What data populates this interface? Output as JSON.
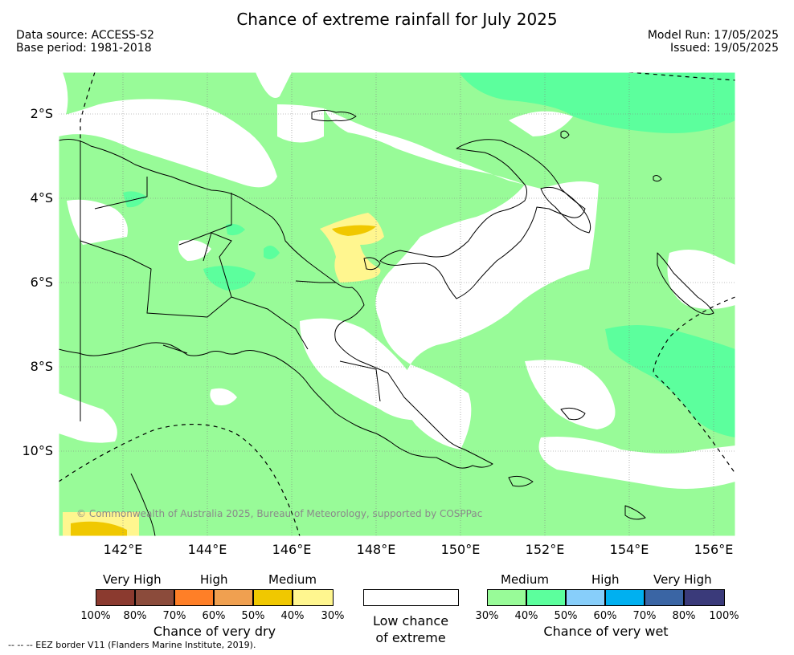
{
  "title": "Chance of extreme rainfall for July 2025",
  "data_source": "Data source: ACCESS-S2",
  "base_period": "Base period: 1981-2018",
  "model_run": "Model Run: 17/05/2025",
  "issued": "Issued: 19/05/2025",
  "lat_labels": [
    "2°S",
    "4°S",
    "6°S",
    "8°S",
    "10°S"
  ],
  "lon_labels": [
    "142°E",
    "144°E",
    "146°E",
    "148°E",
    "150°E",
    "152°E",
    "154°E",
    "156°E"
  ],
  "copyright": "© Commonwealth of Australia 2025, Bureau of Meteorology, supported by COSPPac",
  "colors": {
    "dry": [
      "#8b3a2f",
      "#8b4b3b",
      "#ff7f27",
      "#f0a050",
      "#f0c800",
      "#fff68f"
    ],
    "wet": [
      "#98fb98",
      "#5cff9d",
      "#87cefa",
      "#00b0f0",
      "#3a65a4",
      "#3a3a7a"
    ]
  },
  "legend": {
    "dry_levels": [
      "Very High",
      "High",
      "Medium"
    ],
    "dry_ticks": [
      "100%",
      "80%",
      "70%",
      "60%",
      "50%",
      "40%",
      "30%"
    ],
    "dry_title": "Chance of very dry",
    "low_line1": "Low chance",
    "low_line2": "of extreme",
    "wet_levels": [
      "Medium",
      "High",
      "Very High"
    ],
    "wet_ticks": [
      "30%",
      "40%",
      "50%",
      "60%",
      "70%",
      "80%",
      "100%"
    ],
    "wet_title": "Chance of very wet"
  },
  "eez_note": "--  --  -- EEZ border V11 (Flanders Marine Institute, 2019)."
}
